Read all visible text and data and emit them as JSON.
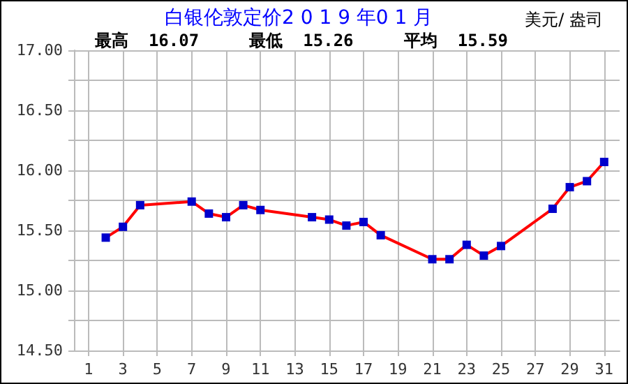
{
  "chart_data": {
    "type": "line",
    "title": "白银伦敦定价2 0 1 9 年0 1 月",
    "subtitle": "最高  16.07     最低  15.26     平均  15.59",
    "annotations": [
      "美元/ 盎司"
    ],
    "x": [
      2,
      3,
      4,
      7,
      8,
      9,
      10,
      11,
      14,
      15,
      16,
      17,
      18,
      21,
      22,
      23,
      24,
      25,
      28,
      29,
      30,
      31
    ],
    "series": [
      {
        "color": "#ff0000",
        "values": [
          15.44,
          15.53,
          15.71,
          15.74,
          15.64,
          15.61,
          15.71,
          15.67,
          15.61,
          15.59,
          15.54,
          15.57,
          15.46,
          15.26,
          15.26,
          15.38,
          15.29,
          15.37,
          15.68,
          15.86,
          15.91,
          16.07
        ]
      }
    ],
    "marker": "square",
    "line_style": "solid",
    "grid": true,
    "xlim": [
      0.15,
      31.9
    ],
    "xticks": [
      1,
      3,
      5,
      7,
      9,
      11,
      13,
      15,
      17,
      19,
      21,
      23,
      25,
      27,
      29,
      31
    ],
    "ylim": [
      14.5,
      17
    ],
    "yticks": [
      {
        "value": 14.5,
        "label": "14.50"
      },
      {
        "value": 14.75,
        "label": null
      },
      {
        "value": 15,
        "label": "15.00"
      },
      {
        "value": 15.25,
        "label": null
      },
      {
        "value": 15.5,
        "label": "15.50"
      },
      {
        "value": 15.75,
        "label": null
      },
      {
        "value": 16,
        "label": "16.00"
      },
      {
        "value": 16.25,
        "label": null
      },
      {
        "value": 16.5,
        "label": "16.50"
      },
      {
        "value": 16.75,
        "label": null
      },
      {
        "value": 17,
        "label": "17.00"
      }
    ]
  }
}
